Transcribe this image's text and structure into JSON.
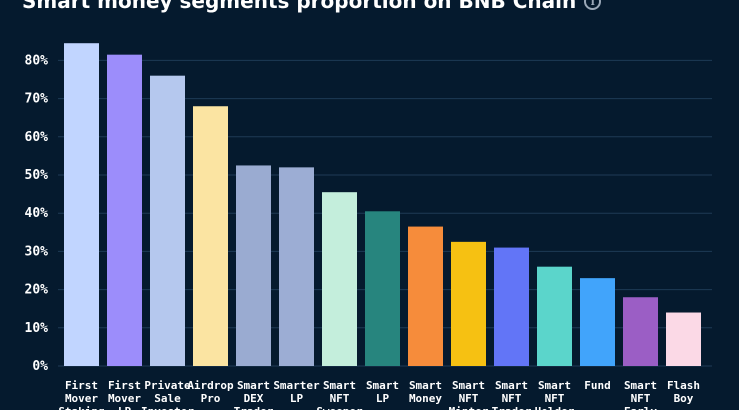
{
  "header": {
    "title": "Smart money segments proportion on BNB Chain",
    "info_icon": "info-icon"
  },
  "chart_data": {
    "type": "bar",
    "title": "Smart money segments proportion on BNB Chain",
    "xlabel": "",
    "ylabel": "",
    "ylim": [
      0,
      85
    ],
    "yticks": [
      0,
      10,
      20,
      30,
      40,
      50,
      60,
      70,
      80
    ],
    "ytick_labels": [
      "0%",
      "10%",
      "20%",
      "30%",
      "40%",
      "50%",
      "60%",
      "70%",
      "80%"
    ],
    "grid": true,
    "categories": [
      [
        "First",
        "Mover",
        "Staking"
      ],
      [
        "First",
        "Mover",
        "LP"
      ],
      [
        "Private",
        "Sale",
        "Investor"
      ],
      [
        "Airdrop",
        "Pro"
      ],
      [
        "Smart",
        "DEX",
        "Trader"
      ],
      [
        "Smarter",
        "LP"
      ],
      [
        "Smart",
        "NFT",
        "Sweeper"
      ],
      [
        "Smart",
        "LP"
      ],
      [
        "Smart",
        "Money"
      ],
      [
        "Smart",
        "NFT",
        "Minter"
      ],
      [
        "Smart",
        "NFT",
        "Trader"
      ],
      [
        "Smart",
        "NFT",
        "Holder"
      ],
      [
        "Fund"
      ],
      [
        "Smart",
        "NFT",
        "Early"
      ],
      [
        "Flash",
        "Boy"
      ]
    ],
    "values": [
      84.5,
      81.5,
      76,
      68,
      52.5,
      52,
      45.5,
      40.5,
      36.5,
      32.5,
      31,
      26,
      23,
      18,
      14
    ],
    "colors": [
      "#c1d5ff",
      "#9c8dfb",
      "#b5c8ee",
      "#fbe4a2",
      "#9aabd1",
      "#9cadd4",
      "#c4eedc",
      "#27857e",
      "#f68c3b",
      "#f6c112",
      "#6275f7",
      "#5bd5cb",
      "#41a4fb",
      "#9b5ec5",
      "#fbd9e6"
    ]
  }
}
